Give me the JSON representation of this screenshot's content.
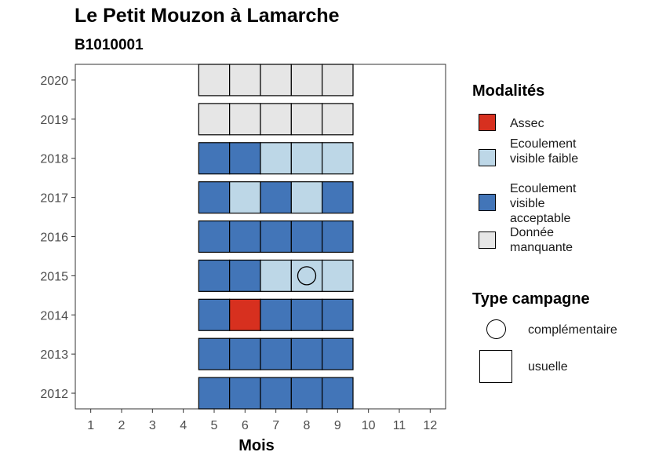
{
  "title": "Le Petit Mouzon à Lamarche",
  "subtitle": "B1010001",
  "chart_data": {
    "type": "heatmap",
    "xlabel": "Mois",
    "ylabel": "",
    "x_ticks": [
      "1",
      "2",
      "3",
      "4",
      "5",
      "6",
      "7",
      "8",
      "9",
      "10",
      "11",
      "12"
    ],
    "y_ticks": [
      "2012",
      "2013",
      "2014",
      "2015",
      "2016",
      "2017",
      "2018",
      "2019",
      "2020"
    ],
    "xlim": [
      0.5,
      12.5
    ],
    "ylim": [
      2011.6,
      2020.4
    ],
    "grid": false,
    "legend_placement": "right",
    "categories": {
      "assec": {
        "label": "Assec",
        "color": "#d7301f"
      },
      "faible": {
        "label": "Ecoulement visible faible",
        "color": "#bdd7e7"
      },
      "acceptable": {
        "label": "Ecoulement visible acceptable",
        "color": "#4275b8"
      },
      "manquante": {
        "label": "Donnée manquante",
        "color": "#e6e6e6"
      }
    },
    "cells": [
      {
        "year": 2012,
        "month": 5,
        "modalite": "acceptable",
        "campagne": "usuelle"
      },
      {
        "year": 2012,
        "month": 6,
        "modalite": "acceptable",
        "campagne": "usuelle"
      },
      {
        "year": 2012,
        "month": 7,
        "modalite": "acceptable",
        "campagne": "usuelle"
      },
      {
        "year": 2012,
        "month": 8,
        "modalite": "acceptable",
        "campagne": "usuelle"
      },
      {
        "year": 2012,
        "month": 9,
        "modalite": "acceptable",
        "campagne": "usuelle"
      },
      {
        "year": 2013,
        "month": 5,
        "modalite": "acceptable",
        "campagne": "usuelle"
      },
      {
        "year": 2013,
        "month": 6,
        "modalite": "acceptable",
        "campagne": "usuelle"
      },
      {
        "year": 2013,
        "month": 7,
        "modalite": "acceptable",
        "campagne": "usuelle"
      },
      {
        "year": 2013,
        "month": 8,
        "modalite": "acceptable",
        "campagne": "usuelle"
      },
      {
        "year": 2013,
        "month": 9,
        "modalite": "acceptable",
        "campagne": "usuelle"
      },
      {
        "year": 2014,
        "month": 5,
        "modalite": "acceptable",
        "campagne": "usuelle"
      },
      {
        "year": 2014,
        "month": 6,
        "modalite": "assec",
        "campagne": "usuelle"
      },
      {
        "year": 2014,
        "month": 7,
        "modalite": "acceptable",
        "campagne": "usuelle"
      },
      {
        "year": 2014,
        "month": 8,
        "modalite": "acceptable",
        "campagne": "usuelle"
      },
      {
        "year": 2014,
        "month": 9,
        "modalite": "acceptable",
        "campagne": "usuelle"
      },
      {
        "year": 2015,
        "month": 5,
        "modalite": "acceptable",
        "campagne": "usuelle"
      },
      {
        "year": 2015,
        "month": 6,
        "modalite": "acceptable",
        "campagne": "usuelle"
      },
      {
        "year": 2015,
        "month": 7,
        "modalite": "faible",
        "campagne": "usuelle"
      },
      {
        "year": 2015,
        "month": 8,
        "modalite": "faible",
        "campagne": "usuelle"
      },
      {
        "year": 2015,
        "month": 8,
        "modalite": "faible",
        "campagne": "complementaire"
      },
      {
        "year": 2015,
        "month": 9,
        "modalite": "faible",
        "campagne": "usuelle"
      },
      {
        "year": 2016,
        "month": 5,
        "modalite": "acceptable",
        "campagne": "usuelle"
      },
      {
        "year": 2016,
        "month": 6,
        "modalite": "acceptable",
        "campagne": "usuelle"
      },
      {
        "year": 2016,
        "month": 7,
        "modalite": "acceptable",
        "campagne": "usuelle"
      },
      {
        "year": 2016,
        "month": 8,
        "modalite": "acceptable",
        "campagne": "usuelle"
      },
      {
        "year": 2016,
        "month": 9,
        "modalite": "acceptable",
        "campagne": "usuelle"
      },
      {
        "year": 2017,
        "month": 5,
        "modalite": "acceptable",
        "campagne": "usuelle"
      },
      {
        "year": 2017,
        "month": 6,
        "modalite": "faible",
        "campagne": "usuelle"
      },
      {
        "year": 2017,
        "month": 7,
        "modalite": "acceptable",
        "campagne": "usuelle"
      },
      {
        "year": 2017,
        "month": 8,
        "modalite": "faible",
        "campagne": "usuelle"
      },
      {
        "year": 2017,
        "month": 9,
        "modalite": "acceptable",
        "campagne": "usuelle"
      },
      {
        "year": 2018,
        "month": 5,
        "modalite": "acceptable",
        "campagne": "usuelle"
      },
      {
        "year": 2018,
        "month": 6,
        "modalite": "acceptable",
        "campagne": "usuelle"
      },
      {
        "year": 2018,
        "month": 7,
        "modalite": "faible",
        "campagne": "usuelle"
      },
      {
        "year": 2018,
        "month": 8,
        "modalite": "faible",
        "campagne": "usuelle"
      },
      {
        "year": 2018,
        "month": 9,
        "modalite": "faible",
        "campagne": "usuelle"
      },
      {
        "year": 2019,
        "month": 5,
        "modalite": "manquante",
        "campagne": "usuelle"
      },
      {
        "year": 2019,
        "month": 6,
        "modalite": "manquante",
        "campagne": "usuelle"
      },
      {
        "year": 2019,
        "month": 7,
        "modalite": "manquante",
        "campagne": "usuelle"
      },
      {
        "year": 2019,
        "month": 8,
        "modalite": "manquante",
        "campagne": "usuelle"
      },
      {
        "year": 2019,
        "month": 9,
        "modalite": "manquante",
        "campagne": "usuelle"
      },
      {
        "year": 2020,
        "month": 5,
        "modalite": "manquante",
        "campagne": "usuelle"
      },
      {
        "year": 2020,
        "month": 6,
        "modalite": "manquante",
        "campagne": "usuelle"
      },
      {
        "year": 2020,
        "month": 7,
        "modalite": "manquante",
        "campagne": "usuelle"
      },
      {
        "year": 2020,
        "month": 8,
        "modalite": "manquante",
        "campagne": "usuelle"
      },
      {
        "year": 2020,
        "month": 9,
        "modalite": "manquante",
        "campagne": "usuelle"
      }
    ]
  },
  "legend": {
    "modalites": {
      "title": "Modalités",
      "items": [
        {
          "label": "Assec",
          "color": "#d7301f"
        },
        {
          "label": "Ecoulement visible faible",
          "color": "#bdd7e7"
        },
        {
          "label": "Ecoulement visible acceptable",
          "color": "#4275b8"
        },
        {
          "label": "Donnée manquante",
          "color": "#e6e6e6"
        }
      ]
    },
    "campagne": {
      "title": "Type campagne",
      "items": [
        {
          "label": "complémentaire",
          "shape": "circle"
        },
        {
          "label": "usuelle",
          "shape": "square"
        }
      ]
    }
  }
}
